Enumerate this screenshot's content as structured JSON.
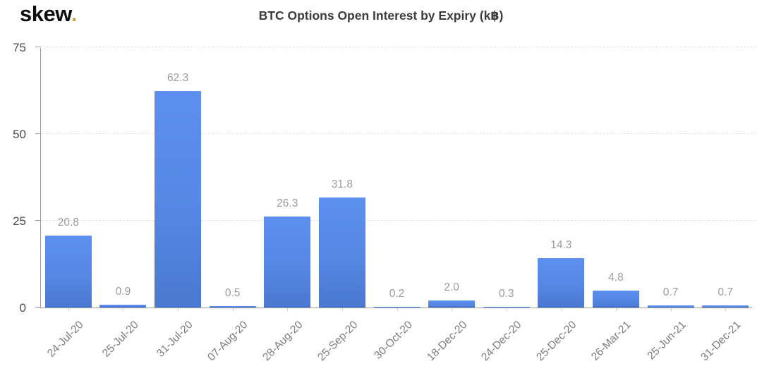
{
  "logo": {
    "text": "skew",
    "dot": "."
  },
  "chart_data": {
    "type": "bar",
    "title": "BTC Options Open Interest by Expiry (k฿)",
    "categories": [
      "24-Jul-20",
      "25-Jul-20",
      "31-Jul-20",
      "07-Aug-20",
      "28-Aug-20",
      "25-Sep-20",
      "30-Oct-20",
      "18-Dec-20",
      "24-Dec-20",
      "25-Dec-20",
      "26-Mar-21",
      "25-Jun-21",
      "31-Dec-21"
    ],
    "values": [
      20.8,
      0.9,
      62.3,
      0.5,
      26.3,
      31.8,
      0.2,
      2.0,
      0.3,
      14.3,
      4.8,
      0.7,
      0.7
    ],
    "xlabel": "",
    "ylabel": "",
    "ylim": [
      0,
      75
    ],
    "y_ticks": [
      0,
      25,
      50,
      75
    ],
    "grid": "horizontal-dashed",
    "legend": "none",
    "bar_color_top": "#5d8ff0",
    "bar_color_bottom": "#4a78ce",
    "value_label_color": "#9b9b9b",
    "axis_color": "#9a9a9a",
    "logo_dot_color": "#cda255"
  }
}
